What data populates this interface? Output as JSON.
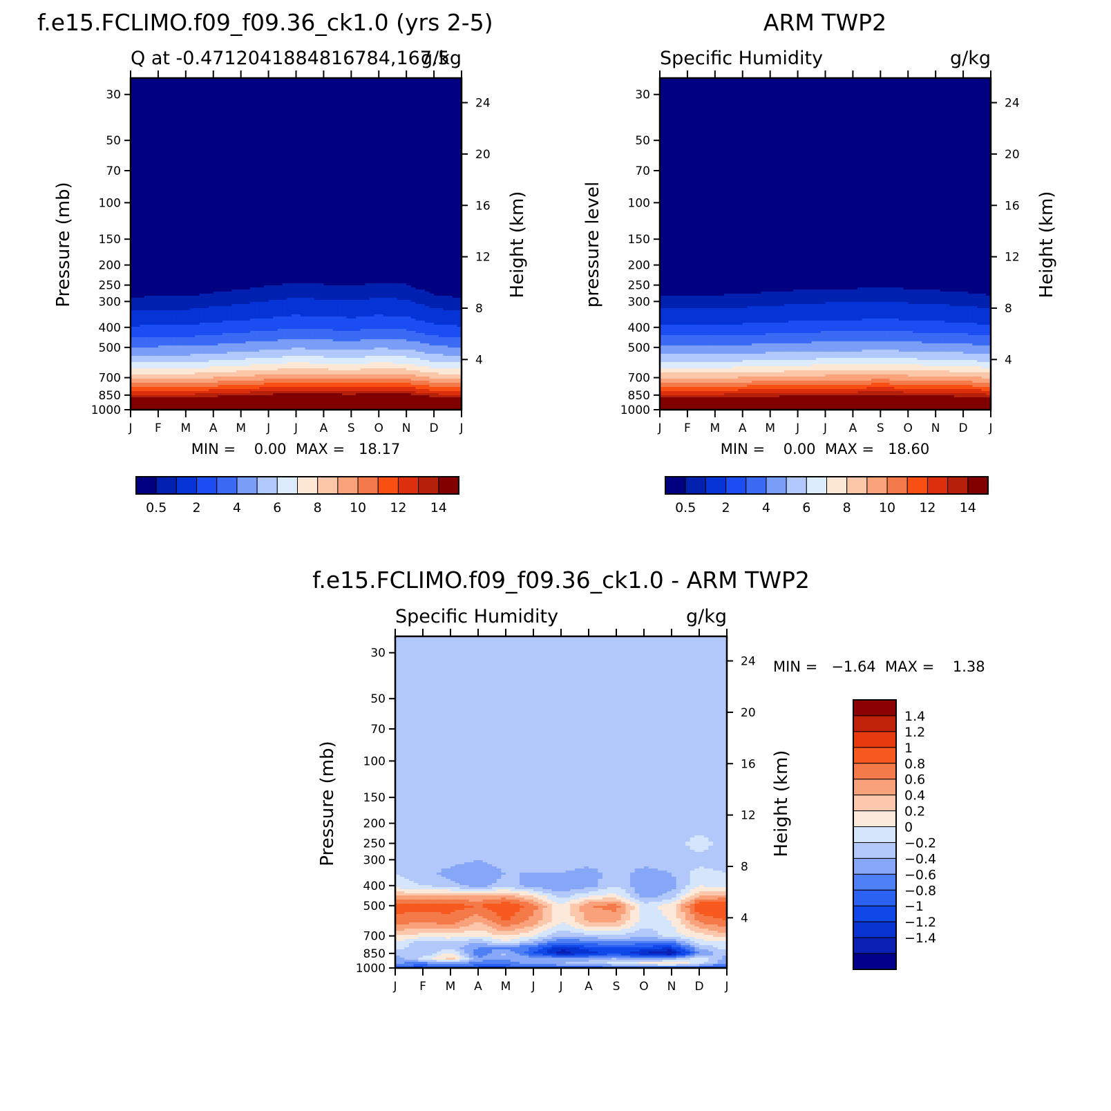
{
  "panels": [
    {
      "title": "f.e15.FCLIMO.f09_f09.36_ck1.0 (yrs 2-5)",
      "subtitle_left": "Q at -0.4712041884816784,167.5",
      "subtitle_right": "g/kg",
      "ylabel": "Pressure (mb)",
      "ylabel_right": "Height (km)",
      "stats_text": "MIN =    0.00  MAX =   18.17"
    },
    {
      "title": "ARM TWP2",
      "subtitle_left": "Specific Humidity",
      "subtitle_right": "g/kg",
      "ylabel": "pressure level",
      "ylabel_right": "Height (km)",
      "stats_text": "MIN =    0.00  MAX =   18.60"
    },
    {
      "title": "f.e15.FCLIMO.f09_f09.36_ck1.0 - ARM TWP2",
      "subtitle_left": "Specific Humidity",
      "subtitle_right": "g/kg",
      "ylabel": "Pressure (mb)",
      "ylabel_right": "Height (km)",
      "stats_text": "MIN =   -1.64  MAX =    1.38"
    }
  ],
  "colorbar_top": {
    "colors": [
      "#000080",
      "#0020b0",
      "#0533d6",
      "#1c4df2",
      "#3b6af5",
      "#7a9df8",
      "#b0c8fb",
      "#dcecfd",
      "#fde8d6",
      "#fcc6a8",
      "#faa37b",
      "#f47a4c",
      "#fa4f12",
      "#dd2e0d",
      "#b5200b",
      "#800000"
    ],
    "tick_labels": [
      "0.5",
      "2",
      "4",
      "6",
      "8",
      "10",
      "12",
      "14"
    ]
  },
  "colorbar_diff": {
    "colors": [
      "#00008a",
      "#0a1fb4",
      "#0833d0",
      "#1047e8",
      "#2b62f2",
      "#4e7ff5",
      "#86a6f8",
      "#b2c8fb",
      "#d5e6fc",
      "#fde9d9",
      "#fcc7aa",
      "#f9a17a",
      "#f57a4a",
      "#f8591e",
      "#e63a0e",
      "#bf2209",
      "#8b0000"
    ],
    "tick_labels": [
      "-1.4",
      "-1.2",
      "-1",
      "-0.8",
      "-0.6",
      "-0.4",
      "-0.2",
      "0",
      "0.2",
      "0.4",
      "0.6",
      "0.8",
      "1",
      "1.2",
      "1.4"
    ]
  },
  "chart_data": [
    {
      "type": "heatmap",
      "title": "f.e15.FCLIMO.f09_f09.36_ck1.0 (yrs 2-5)",
      "subtitle": "Q at -0.4712041884816784,167.5",
      "units": "g/kg",
      "x_ticks": [
        "J",
        "F",
        "M",
        "A",
        "M",
        "J",
        "J",
        "A",
        "S",
        "O",
        "N",
        "D",
        "J"
      ],
      "y_ticks_left": [
        30,
        50,
        70,
        100,
        150,
        200,
        250,
        300,
        400,
        500,
        700,
        850,
        1000
      ],
      "y_ticks_right": [
        24,
        20,
        16,
        12,
        8,
        4
      ],
      "ylim": [
        1000,
        25
      ],
      "y_scale": "log",
      "xlabel": "",
      "ylabel": "Pressure (mb)",
      "ylabel_right": "Height (km)",
      "levels": [
        0.5,
        1,
        2,
        3,
        4,
        5,
        6,
        7,
        8,
        9,
        10,
        11,
        12,
        13,
        14
      ],
      "min": 0.0,
      "max": 18.17,
      "profile_pressure": [
        1000,
        950,
        900,
        850,
        800,
        750,
        700,
        650,
        600,
        550,
        500,
        450,
        400,
        350,
        300,
        250
      ],
      "profile_q": [
        18.2,
        16.5,
        14.8,
        13.0,
        11.5,
        10.0,
        8.6,
        7.3,
        6.1,
        5.0,
        4.0,
        3.0,
        2.1,
        1.2,
        0.6,
        0.2
      ],
      "seasonal_shift_hpa": [
        0,
        5,
        5,
        15,
        25,
        35,
        45,
        40,
        35,
        45,
        40,
        10,
        0
      ]
    },
    {
      "type": "heatmap",
      "title": "ARM TWP2",
      "subtitle": "Specific Humidity",
      "units": "g/kg",
      "x_ticks": [
        "J",
        "F",
        "M",
        "A",
        "M",
        "J",
        "J",
        "A",
        "S",
        "O",
        "N",
        "D",
        "J"
      ],
      "y_ticks_left": [
        30,
        50,
        70,
        100,
        150,
        200,
        250,
        300,
        400,
        500,
        700,
        850,
        1000
      ],
      "y_ticks_right": [
        24,
        20,
        16,
        12,
        8,
        4
      ],
      "ylim": [
        1000,
        25
      ],
      "y_scale": "log",
      "xlabel": "",
      "ylabel": "pressure level",
      "ylabel_right": "Height (km)",
      "levels": [
        0.5,
        1,
        2,
        3,
        4,
        5,
        6,
        7,
        8,
        9,
        10,
        11,
        12,
        13,
        14
      ],
      "min": 0.0,
      "max": 18.6,
      "profile_pressure": [
        1000,
        950,
        900,
        850,
        800,
        750,
        700,
        650,
        600,
        550,
        500,
        450,
        400,
        350,
        300,
        250
      ],
      "profile_q": [
        18.6,
        16.8,
        15.0,
        13.2,
        11.8,
        10.3,
        8.9,
        7.6,
        6.3,
        5.2,
        4.2,
        3.2,
        2.2,
        1.3,
        0.7,
        0.2
      ],
      "seasonal_shift_hpa": [
        0,
        0,
        0,
        5,
        10,
        15,
        20,
        20,
        25,
        20,
        15,
        10,
        0
      ]
    },
    {
      "type": "heatmap",
      "title": "f.e15.FCLIMO.f09_f09.36_ck1.0 - ARM TWP2",
      "subtitle": "Specific Humidity",
      "units": "g/kg",
      "x_ticks": [
        "J",
        "F",
        "M",
        "A",
        "M",
        "J",
        "J",
        "A",
        "S",
        "O",
        "N",
        "D",
        "J"
      ],
      "y_ticks_left": [
        30,
        50,
        70,
        100,
        150,
        200,
        250,
        300,
        400,
        500,
        700,
        850,
        1000
      ],
      "y_ticks_right": [
        24,
        20,
        16,
        12,
        8,
        4
      ],
      "ylim": [
        1000,
        25
      ],
      "y_scale": "log",
      "xlabel": "",
      "ylabel": "Pressure (mb)",
      "ylabel_right": "Height (km)",
      "levels": [
        -1.4,
        -1.2,
        -1,
        -0.8,
        -0.6,
        -0.4,
        -0.2,
        0,
        0.2,
        0.4,
        0.6,
        0.8,
        1,
        1.2,
        1.4
      ],
      "min": -1.64,
      "max": 1.38,
      "months": [
        0,
        1,
        2,
        3,
        4,
        5,
        6,
        7,
        8,
        9,
        10,
        11,
        12
      ],
      "pressure_levels": [
        1000,
        950,
        900,
        850,
        800,
        750,
        700,
        600,
        500,
        450,
        400,
        350,
        300,
        250,
        200,
        150,
        100,
        70
      ],
      "values": [
        [
          -0.9,
          -0.9,
          -0.8,
          -0.9,
          -0.9,
          -0.8,
          -0.8,
          -0.9,
          -0.7,
          -0.8,
          -0.9,
          -0.8,
          -0.9
        ],
        [
          -0.4,
          -0.5,
          -0.3,
          -0.5,
          -0.5,
          -0.3,
          -0.2,
          -0.1,
          0.1,
          0.3,
          0.5,
          0.1,
          -0.4
        ],
        [
          -0.3,
          0.1,
          0.5,
          -0.3,
          -0.4,
          -0.2,
          -0.3,
          -0.3,
          -0.2,
          -0.4,
          -0.3,
          0.2,
          -0.3
        ],
        [
          -0.1,
          -0.2,
          0.3,
          -0.6,
          -0.1,
          -0.8,
          -1.3,
          -1.1,
          -0.9,
          -1.2,
          -1.5,
          -0.4,
          -0.1
        ],
        [
          0.1,
          -0.2,
          -0.1,
          -0.4,
          -0.5,
          -0.6,
          -1.2,
          -0.9,
          -0.8,
          -0.9,
          -1.0,
          -0.2,
          0.1
        ],
        [
          0.2,
          -0.1,
          0.0,
          -0.2,
          0.2,
          -0.2,
          -0.6,
          -0.5,
          -0.4,
          -0.5,
          -0.5,
          0.1,
          0.2
        ],
        [
          0.4,
          0.3,
          0.3,
          0.2,
          0.4,
          0.2,
          -0.2,
          -0.1,
          0.0,
          -0.2,
          0.1,
          0.3,
          0.5
        ],
        [
          0.9,
          0.8,
          0.9,
          0.6,
          1.0,
          0.7,
          0.2,
          0.6,
          0.6,
          0.1,
          0.2,
          0.8,
          1.0
        ],
        [
          1.1,
          1.1,
          1.1,
          1.0,
          1.2,
          0.9,
          0.2,
          0.8,
          0.9,
          0.1,
          0.3,
          1.2,
          1.2
        ],
        [
          0.6,
          0.6,
          0.6,
          0.6,
          0.7,
          0.4,
          -0.1,
          0.2,
          0.3,
          -0.3,
          -0.1,
          0.6,
          0.7
        ],
        [
          0.1,
          0.0,
          -0.1,
          -0.3,
          -0.1,
          -0.3,
          -0.4,
          -0.3,
          0.0,
          -0.4,
          -0.3,
          0.2,
          0.1
        ],
        [
          0.0,
          -0.1,
          -0.3,
          -0.4,
          -0.2,
          -0.2,
          -0.2,
          -0.3,
          -0.1,
          -0.3,
          -0.2,
          0.1,
          0.0
        ],
        [
          -0.1,
          -0.1,
          -0.1,
          -0.2,
          -0.1,
          -0.1,
          -0.1,
          -0.1,
          -0.1,
          -0.1,
          -0.1,
          -0.1,
          -0.1
        ],
        [
          -0.1,
          0.0,
          -0.1,
          -0.1,
          0.0,
          -0.1,
          -0.1,
          -0.1,
          0.0,
          -0.1,
          -0.1,
          0.1,
          -0.1
        ],
        [
          -0.1,
          0.0,
          0.0,
          -0.1,
          0.0,
          -0.1,
          -0.1,
          -0.1,
          0.0,
          -0.1,
          -0.1,
          -0.1,
          -0.1
        ],
        [
          -0.1,
          -0.1,
          -0.1,
          0.0,
          -0.1,
          -0.1,
          -0.1,
          -0.1,
          -0.1,
          0.0,
          -0.1,
          -0.1,
          -0.1
        ],
        [
          -0.1,
          -0.1,
          -0.1,
          -0.1,
          -0.1,
          -0.1,
          -0.1,
          0.0,
          0.0,
          0.0,
          -0.1,
          -0.1,
          -0.1
        ],
        [
          -0.1,
          -0.1,
          -0.1,
          -0.1,
          -0.1,
          -0.1,
          -0.1,
          -0.1,
          -0.1,
          -0.1,
          -0.1,
          -0.1,
          -0.1
        ]
      ]
    }
  ]
}
